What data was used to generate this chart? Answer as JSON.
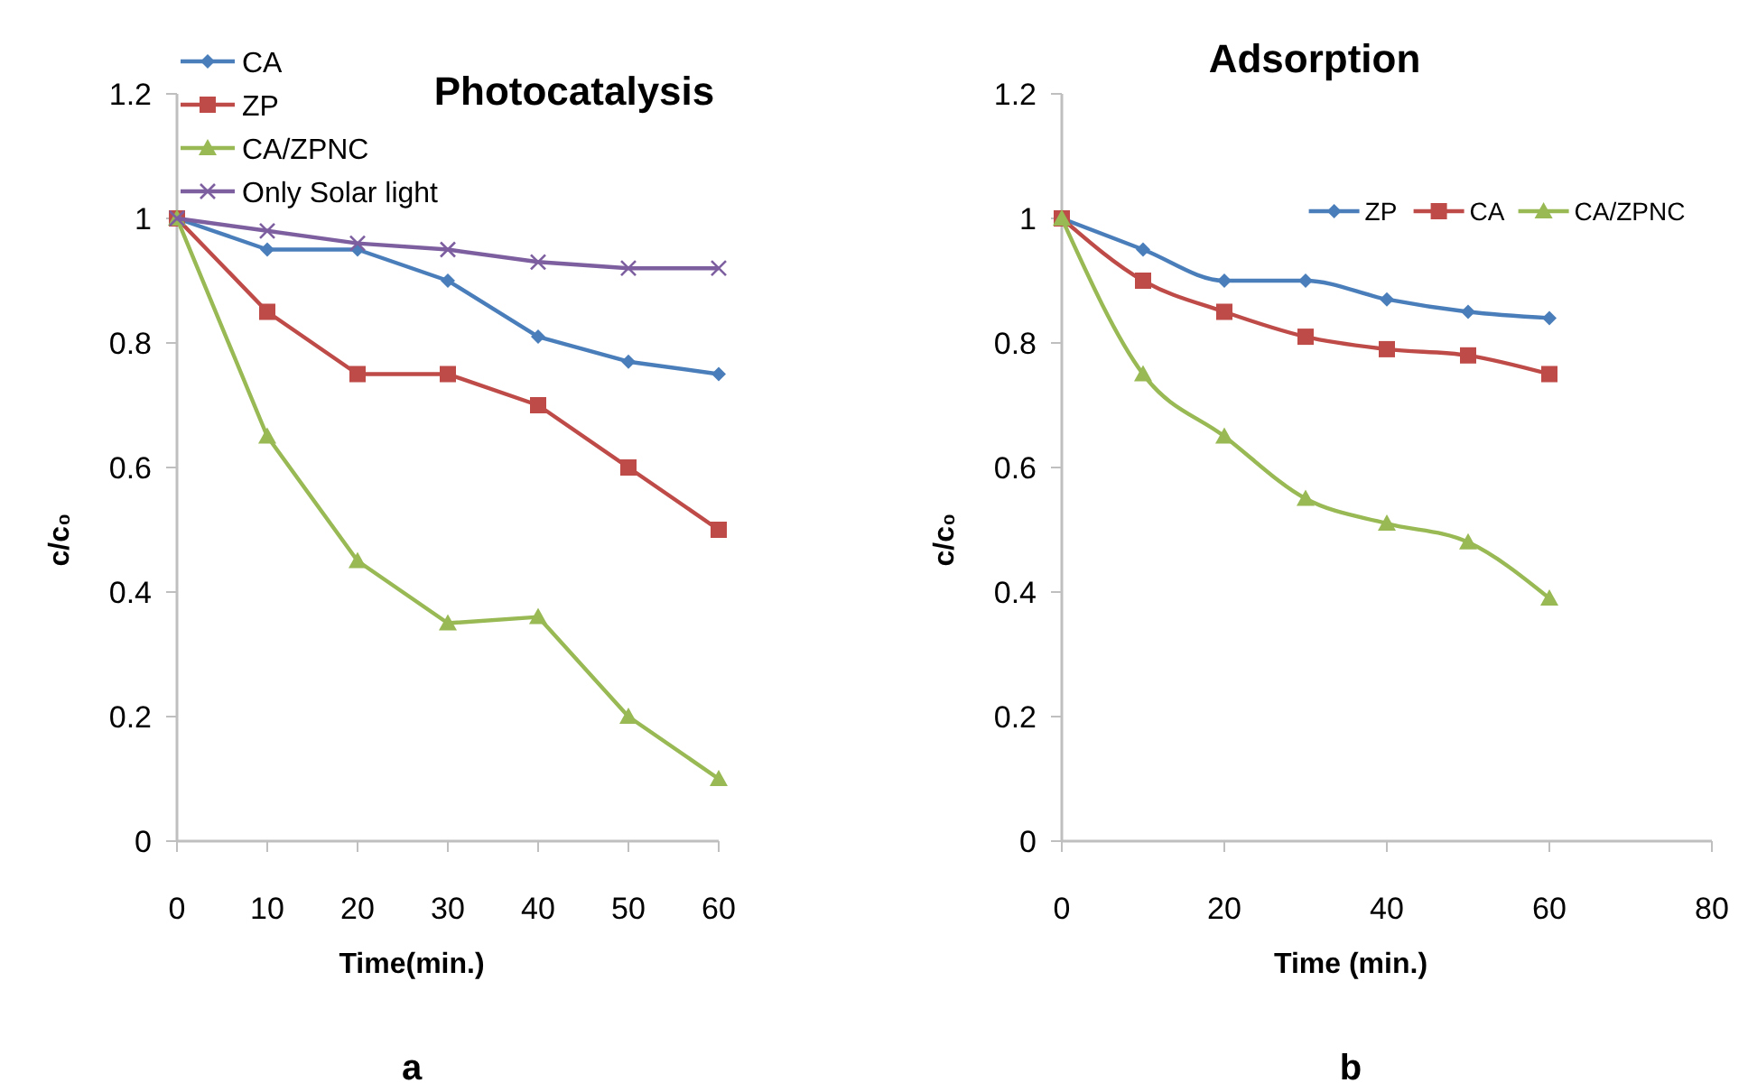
{
  "chart_data": [
    {
      "type": "line",
      "title": "Photocatalysis",
      "xlabel": "Time(min.)",
      "ylabel": "c/c₀",
      "x": [
        0,
        10,
        20,
        30,
        40,
        50,
        60
      ],
      "xlim": [
        0,
        60
      ],
      "xticks": [
        0,
        10,
        20,
        30,
        40,
        50,
        60
      ],
      "ylim": [
        0,
        1.2
      ],
      "yticks": [
        0,
        0.2,
        0.4,
        0.6,
        0.8,
        1,
        1.2
      ],
      "legend": "top left",
      "grid": false,
      "annotations": [
        "a"
      ],
      "series": [
        {
          "name": "CA",
          "color": "#4a7ebb",
          "marker": "diamond",
          "values": [
            1,
            0.95,
            0.95,
            0.9,
            0.81,
            0.77,
            0.75
          ]
        },
        {
          "name": "ZP",
          "color": "#be4b48",
          "marker": "square",
          "values": [
            1,
            0.85,
            0.75,
            0.75,
            0.7,
            0.6,
            0.5
          ]
        },
        {
          "name": "CA/ZPNC",
          "color": "#98b954",
          "marker": "triangle",
          "values": [
            1,
            0.65,
            0.45,
            0.35,
            0.36,
            0.2,
            0.1
          ]
        },
        {
          "name": "Only Solar light",
          "color": "#7d5fa0",
          "marker": "cross",
          "values": [
            1,
            0.98,
            0.96,
            0.95,
            0.93,
            0.92,
            0.92
          ]
        }
      ]
    },
    {
      "type": "line",
      "title": "Adsorption",
      "xlabel": "Time (min.)",
      "ylabel": "c/c₀",
      "x": [
        0,
        10,
        20,
        30,
        40,
        50,
        60
      ],
      "xlim": [
        0,
        80
      ],
      "xticks": [
        0,
        20,
        40,
        60,
        80
      ],
      "ylim": [
        0,
        1.2
      ],
      "yticks": [
        0,
        0.2,
        0.4,
        0.6,
        0.8,
        1,
        1.2
      ],
      "legend": "top right",
      "grid": false,
      "annotations": [
        "b"
      ],
      "series": [
        {
          "name": "ZP",
          "color": "#4a7ebb",
          "marker": "diamond",
          "values": [
            1,
            0.95,
            0.9,
            0.9,
            0.87,
            0.85,
            0.84
          ]
        },
        {
          "name": "CA",
          "color": "#be4b48",
          "marker": "square",
          "values": [
            1,
            0.9,
            0.85,
            0.81,
            0.79,
            0.78,
            0.75
          ]
        },
        {
          "name": "CA/ZPNC",
          "color": "#98b954",
          "marker": "triangle",
          "values": [
            1,
            0.75,
            0.65,
            0.55,
            0.51,
            0.48,
            0.39
          ]
        }
      ]
    }
  ]
}
